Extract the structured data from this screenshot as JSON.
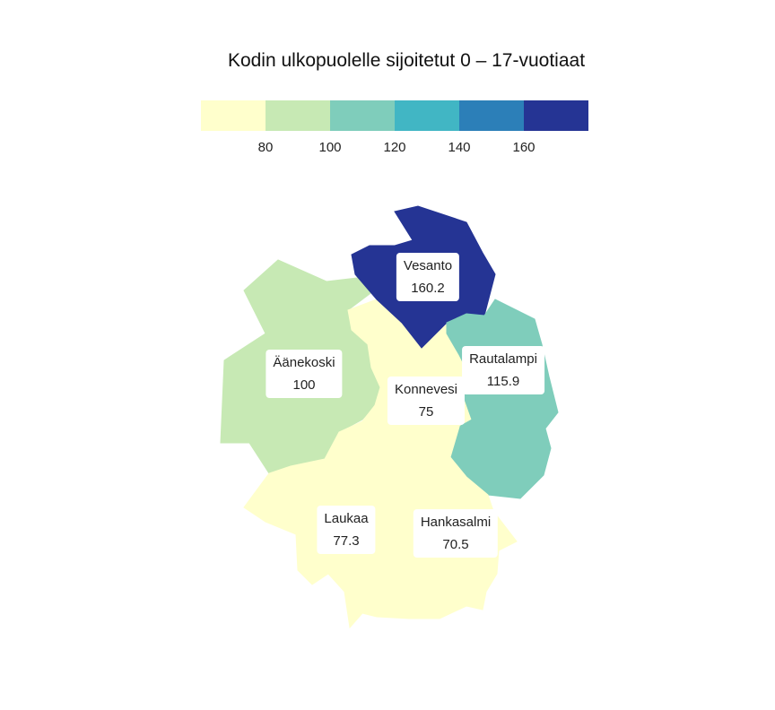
{
  "title": "Kodin ulkopuolelle sijoitetut 0 – 17-vuotiaat",
  "legend": {
    "bins": [
      {
        "color": "#ffffcc"
      },
      {
        "color": "#c7e9b4"
      },
      {
        "color": "#7fcdbb"
      },
      {
        "color": "#41b6c4"
      },
      {
        "color": "#2c7fb8"
      },
      {
        "color": "#253494"
      }
    ],
    "ticks": [
      "80",
      "100",
      "120",
      "140",
      "160"
    ]
  },
  "regions": [
    {
      "key": "vesanto",
      "name": "Vesanto",
      "value": "160.2",
      "color": "#253494"
    },
    {
      "key": "rautalampi",
      "name": "Rautalampi",
      "value": "115.9",
      "color": "#7fcdbb"
    },
    {
      "key": "aanekoski",
      "name": "Äänekoski",
      "value": "100",
      "color": "#c7e9b4"
    },
    {
      "key": "konnevesi",
      "name": "Konnevesi",
      "value": "75",
      "color": "#ffffcc"
    },
    {
      "key": "laukaa",
      "name": "Laukaa",
      "value": "77.3",
      "color": "#ffffcc"
    },
    {
      "key": "hankasalmi",
      "name": "Hankasalmi",
      "value": "70.5",
      "color": "#ffffcc"
    }
  ]
}
